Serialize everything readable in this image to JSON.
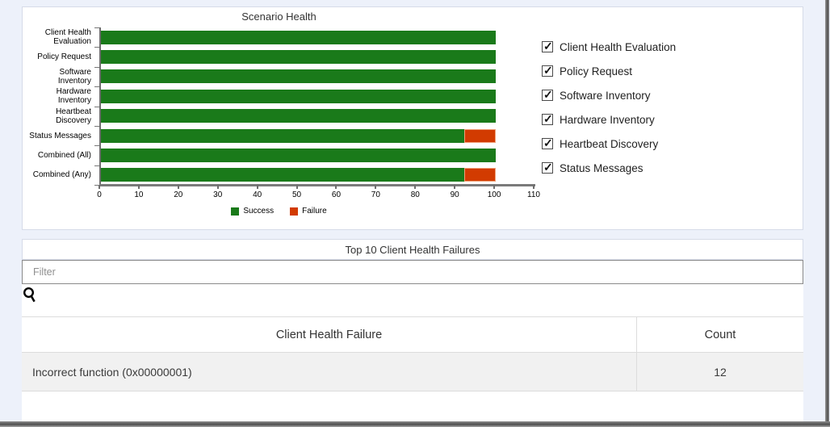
{
  "window": {
    "background_color": "#edf1fa"
  },
  "chart_data": {
    "type": "bar",
    "orientation": "horizontal",
    "title": "Scenario Health",
    "categories": [
      "Client Health\nEvaluation",
      "Policy Request",
      "Software\nInventory",
      "Hardware\nInventory",
      "Heartbeat\nDiscovery",
      "Status Messages",
      "Combined (All)",
      "Combined (Any)"
    ],
    "series": [
      {
        "name": "Success",
        "color": "#1a7a1a",
        "values": [
          100,
          100,
          100,
          100,
          100,
          92,
          100,
          92
        ]
      },
      {
        "name": "Failure",
        "color": "#d23b01",
        "border_color": "#f0a27a",
        "values": [
          0,
          0,
          0,
          0,
          0,
          8,
          0,
          8
        ]
      }
    ],
    "xlim": [
      0,
      110
    ],
    "xticks": [
      0,
      10,
      20,
      30,
      40,
      50,
      60,
      70,
      80,
      90,
      100,
      110
    ],
    "legend_position": "bottom",
    "grid": false
  },
  "scenario_filters": {
    "items": [
      {
        "label": "Client Health Evaluation",
        "checked": true
      },
      {
        "label": "Policy Request",
        "checked": true
      },
      {
        "label": "Software Inventory",
        "checked": true
      },
      {
        "label": "Hardware Inventory",
        "checked": true
      },
      {
        "label": "Heartbeat Discovery",
        "checked": true
      },
      {
        "label": "Status Messages",
        "checked": true
      }
    ]
  },
  "failures_panel": {
    "title": "Top 10 Client Health Failures",
    "filter": {
      "placeholder": "Filter",
      "value": ""
    },
    "table": {
      "columns": [
        "Client Health Failure",
        "Count"
      ],
      "rows": [
        {
          "failure": "Incorrect function (0x00000001)",
          "count": "12"
        }
      ]
    }
  }
}
